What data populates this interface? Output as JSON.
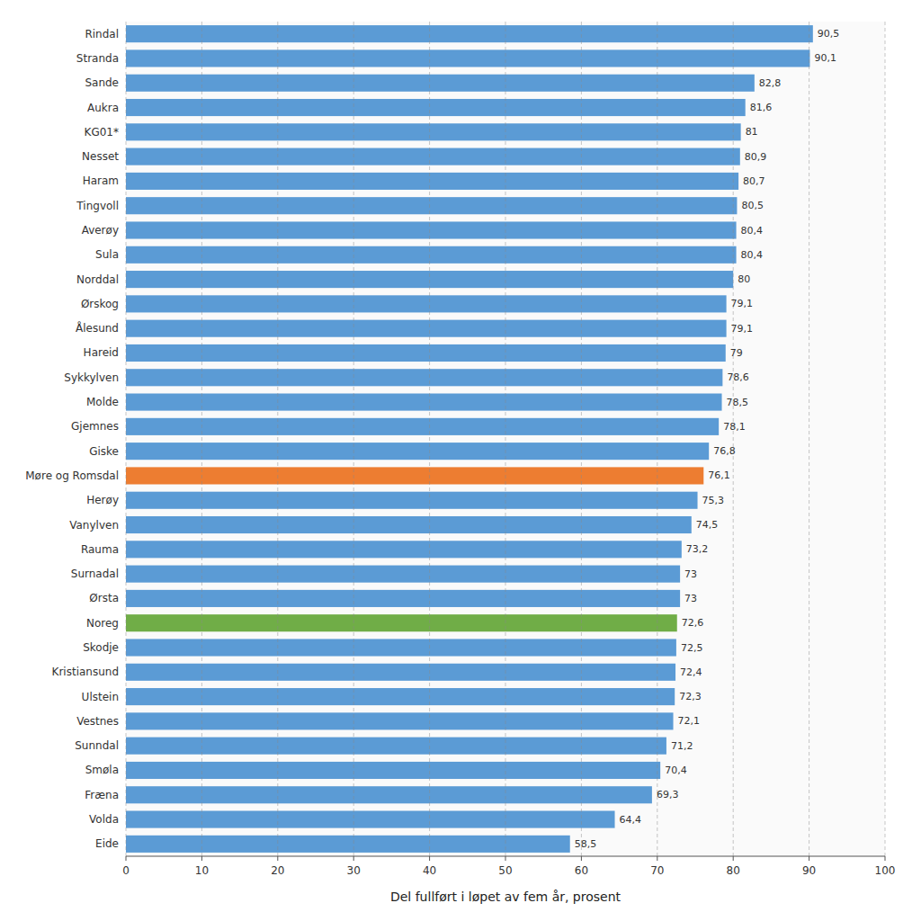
{
  "chart_data": {
    "type": "bar",
    "orientation": "horizontal",
    "categories": [
      "Rindal",
      "Stranda",
      "Sande",
      "Aukra",
      "KG01*",
      "Nesset",
      "Haram",
      "Tingvoll",
      "Averøy",
      "Sula",
      "Norddal",
      "Ørskog",
      "Ålesund",
      "Hareid",
      "Sykkylven",
      "Molde",
      "Gjemnes",
      "Giske",
      "Møre og Romsdal",
      "Herøy",
      "Vanylven",
      "Rauma",
      "Surnadal",
      "Ørsta",
      "Noreg",
      "Skodje",
      "Kristiansund",
      "Ulstein",
      "Vestnes",
      "Sunndal",
      "Smøla",
      "Fræna",
      "Volda",
      "Eide"
    ],
    "values": [
      90.5,
      90.1,
      82.8,
      81.6,
      81.0,
      80.9,
      80.7,
      80.5,
      80.4,
      80.4,
      80.0,
      79.1,
      79.1,
      79.0,
      78.6,
      78.5,
      78.1,
      76.8,
      76.1,
      75.3,
      74.5,
      73.2,
      73.0,
      73.0,
      72.6,
      72.5,
      72.4,
      72.3,
      72.1,
      71.2,
      70.4,
      69.3,
      64.4,
      58.5
    ],
    "value_labels": [
      "90,5",
      "90,1",
      "82,8",
      "81,6",
      "81",
      "80,9",
      "80,7",
      "80,5",
      "80,4",
      "80,4",
      "80",
      "79,1",
      "79,1",
      "79",
      "78,6",
      "78,5",
      "78,1",
      "76,8",
      "76,1",
      "75,3",
      "74,5",
      "73,2",
      "73",
      "73",
      "72,6",
      "72,5",
      "72,4",
      "72,3",
      "72,1",
      "71,2",
      "70,4",
      "69,3",
      "64,4",
      "58,5"
    ],
    "colors": [
      "#5B9BD5",
      "#5B9BD5",
      "#5B9BD5",
      "#5B9BD5",
      "#5B9BD5",
      "#5B9BD5",
      "#5B9BD5",
      "#5B9BD5",
      "#5B9BD5",
      "#5B9BD5",
      "#5B9BD5",
      "#5B9BD5",
      "#5B9BD5",
      "#5B9BD5",
      "#5B9BD5",
      "#5B9BD5",
      "#5B9BD5",
      "#5B9BD5",
      "#ED7D31",
      "#5B9BD5",
      "#5B9BD5",
      "#5B9BD5",
      "#5B9BD5",
      "#5B9BD5",
      "#70AD47",
      "#5B9BD5",
      "#5B9BD5",
      "#5B9BD5",
      "#5B9BD5",
      "#5B9BD5",
      "#5B9BD5",
      "#5B9BD5",
      "#5B9BD5",
      "#5B9BD5"
    ],
    "xlabel": "Del fullført i løpet av fem år, prosent",
    "xlim": [
      0,
      100
    ],
    "xticks": [
      0,
      10,
      20,
      30,
      40,
      50,
      60,
      70,
      80,
      90,
      100
    ],
    "grid": true,
    "data_labels": true
  }
}
